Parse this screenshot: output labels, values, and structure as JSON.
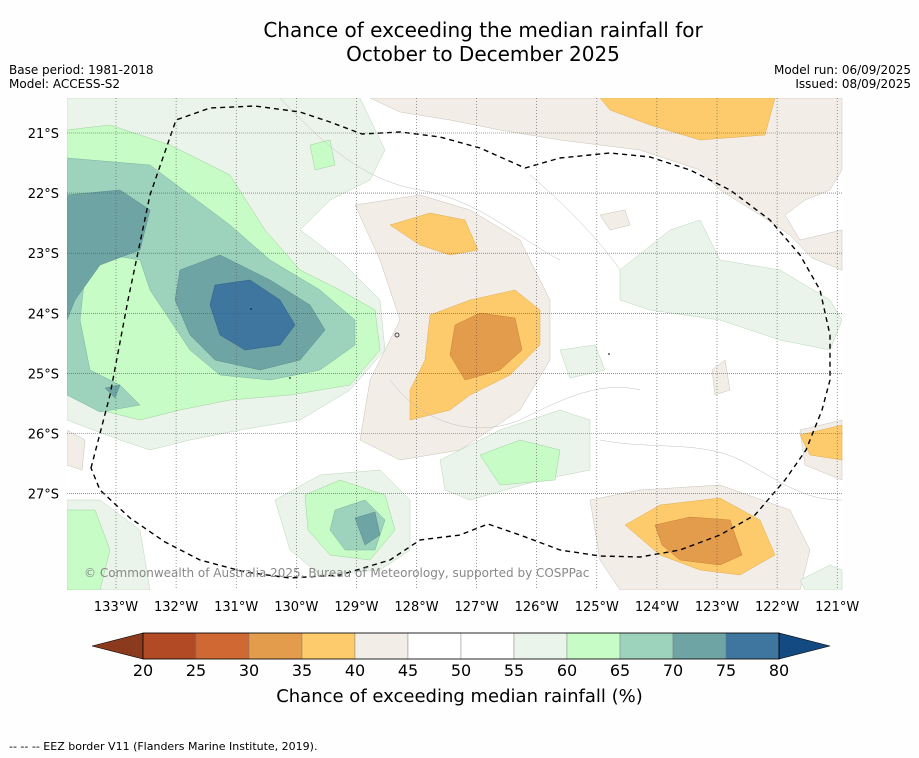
{
  "title": {
    "line1": "Chance of exceeding the median rainfall for",
    "line2": "October to December 2025"
  },
  "meta": {
    "base_period": "Base period: 1981-2018",
    "model": "Model: ACCESS-S2",
    "model_run": "Model run: 06/09/2025",
    "issued": "Issued: 08/09/2025"
  },
  "copyright": "© Commonwealth of Australia 2025, Bureau of Meteorology, supported by COSPPac",
  "axes": {
    "lat_labels": [
      "21°S",
      "22°S",
      "23°S",
      "24°S",
      "25°S",
      "26°S",
      "27°S"
    ],
    "lon_labels": [
      "133°W",
      "132°W",
      "131°W",
      "130°W",
      "129°W",
      "128°W",
      "127°W",
      "126°W",
      "125°W",
      "124°W",
      "123°W",
      "122°W",
      "121°W"
    ]
  },
  "colorbar": {
    "ticks": [
      "20",
      "25",
      "30",
      "35",
      "40",
      "45",
      "50",
      "55",
      "60",
      "65",
      "70",
      "75",
      "80"
    ],
    "title": "Chance of exceeding median rainfall (%)",
    "colors": [
      "#8c3a1e",
      "#b24a26",
      "#cf6833",
      "#e39b4c",
      "#fdcb6b",
      "#f2ede7",
      "#ffffff",
      "#ffffff",
      "#eaf4ea",
      "#c8fcc6",
      "#9dd3bc",
      "#6ea4a4",
      "#3e76a0",
      "#144a82"
    ]
  },
  "footnote": "--  --  -- EEZ border V11 (Flanders Marine Institute, 2019)."
}
